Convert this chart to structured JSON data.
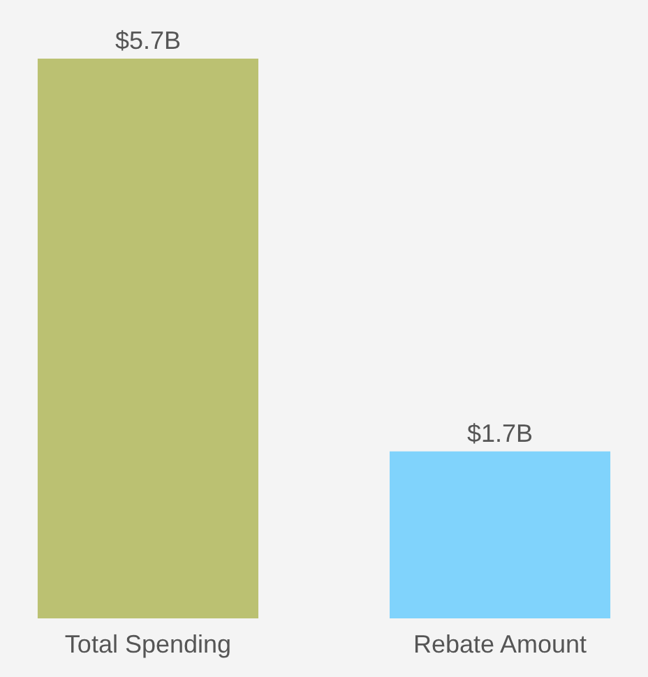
{
  "chart_data": {
    "type": "bar",
    "categories": [
      "Total Spending",
      "Rebate Amount"
    ],
    "values": [
      5.7,
      1.7
    ],
    "colors": [
      "#bbc172",
      "#80d3fc"
    ],
    "value_labels": [
      "$5.7B",
      "$1.7B"
    ]
  }
}
